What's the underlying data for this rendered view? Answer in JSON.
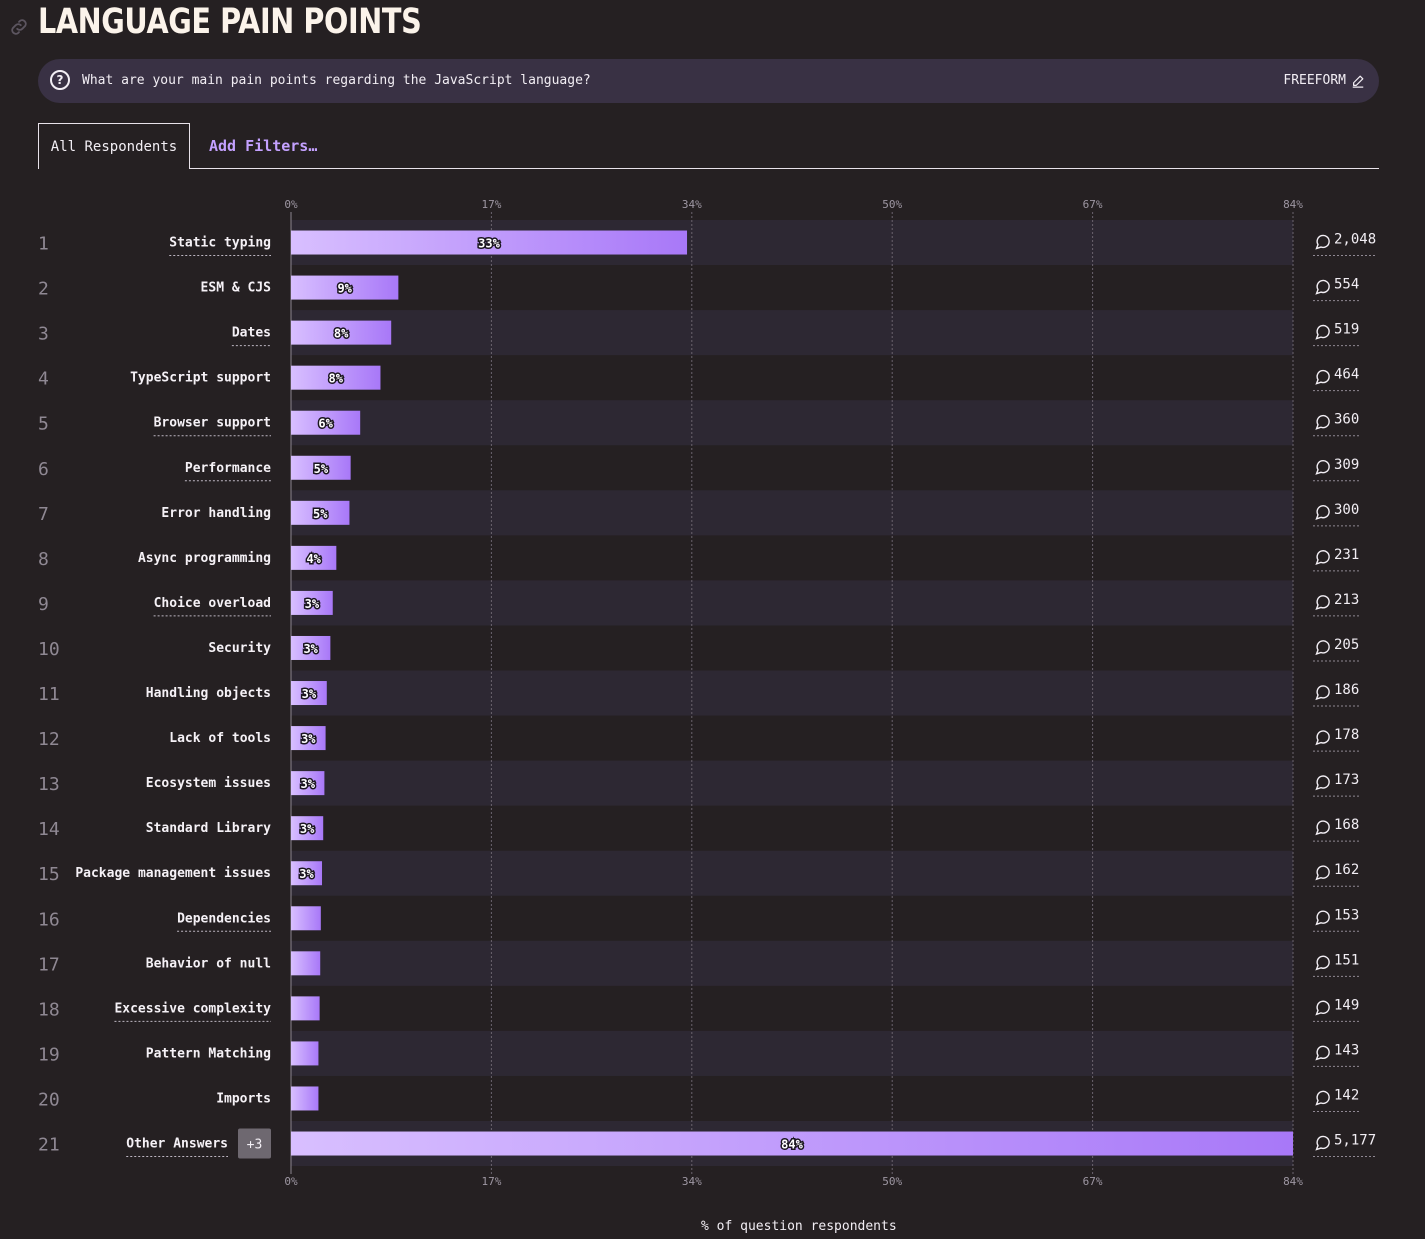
{
  "header": {
    "title": "LANGUAGE PAIN POINTS",
    "question": "What are your main pain points regarding the JavaScript language?",
    "freeform_label": "FREEFORM"
  },
  "tabs": {
    "active": "All Respondents",
    "filters": "Add Filters…"
  },
  "chart_data": {
    "type": "bar",
    "orientation": "horizontal",
    "title": "LANGUAGE PAIN POINTS",
    "xlabel": "% of question respondents",
    "xlim": [
      0,
      84
    ],
    "ticks": [
      "0%",
      "17%",
      "34%",
      "50%",
      "67%",
      "84%"
    ],
    "tick_values": [
      0,
      16.8,
      33.6,
      50.4,
      67.2,
      84
    ],
    "rows": [
      {
        "rank": "1",
        "label": "Static typing",
        "value": 33.2,
        "pct": "33%",
        "count": "2,048",
        "underline": true
      },
      {
        "rank": "2",
        "label": "ESM & CJS",
        "value": 9.0,
        "pct": "9%",
        "count": "554",
        "underline": false
      },
      {
        "rank": "3",
        "label": "Dates",
        "value": 8.4,
        "pct": "8%",
        "count": "519",
        "underline": true
      },
      {
        "rank": "4",
        "label": "TypeScript support",
        "value": 7.5,
        "pct": "8%",
        "count": "464",
        "underline": false
      },
      {
        "rank": "5",
        "label": "Browser support",
        "value": 5.8,
        "pct": "6%",
        "count": "360",
        "underline": true
      },
      {
        "rank": "6",
        "label": "Performance",
        "value": 5.0,
        "pct": "5%",
        "count": "309",
        "underline": true
      },
      {
        "rank": "7",
        "label": "Error handling",
        "value": 4.9,
        "pct": "5%",
        "count": "300",
        "underline": false
      },
      {
        "rank": "8",
        "label": "Async programming",
        "value": 3.8,
        "pct": "4%",
        "count": "231",
        "underline": false
      },
      {
        "rank": "9",
        "label": "Choice overload",
        "value": 3.5,
        "pct": "3%",
        "count": "213",
        "underline": true
      },
      {
        "rank": "10",
        "label": "Security",
        "value": 3.3,
        "pct": "3%",
        "count": "205",
        "underline": false
      },
      {
        "rank": "11",
        "label": "Handling objects",
        "value": 3.0,
        "pct": "3%",
        "count": "186",
        "underline": false
      },
      {
        "rank": "12",
        "label": "Lack of tools",
        "value": 2.9,
        "pct": "3%",
        "count": "178",
        "underline": false
      },
      {
        "rank": "13",
        "label": "Ecosystem issues",
        "value": 2.8,
        "pct": "3%",
        "count": "173",
        "underline": false
      },
      {
        "rank": "14",
        "label": "Standard Library",
        "value": 2.7,
        "pct": "3%",
        "count": "168",
        "underline": false
      },
      {
        "rank": "15",
        "label": "Package management issues",
        "value": 2.6,
        "pct": "3%",
        "count": "162",
        "underline": false
      },
      {
        "rank": "16",
        "label": "Dependencies",
        "value": 2.5,
        "pct": "",
        "count": "153",
        "underline": true
      },
      {
        "rank": "17",
        "label": "Behavior of null",
        "value": 2.45,
        "pct": "",
        "count": "151",
        "underline": false
      },
      {
        "rank": "18",
        "label": "Excessive complexity",
        "value": 2.4,
        "pct": "",
        "count": "149",
        "underline": true
      },
      {
        "rank": "19",
        "label": "Pattern Matching",
        "value": 2.3,
        "pct": "",
        "count": "143",
        "underline": false
      },
      {
        "rank": "20",
        "label": "Imports",
        "value": 2.3,
        "pct": "",
        "count": "142",
        "underline": false
      },
      {
        "rank": "21",
        "label": "Other Answers",
        "value": 84.0,
        "pct": "84%",
        "count": "5,177",
        "underline": true,
        "badge": "+3"
      }
    ]
  },
  "colors": {
    "background": "#252022",
    "stripe": "#2d2833",
    "bar_start": "#d8bfff",
    "bar_end": "#a878f8",
    "accent": "#c4a1ff"
  }
}
